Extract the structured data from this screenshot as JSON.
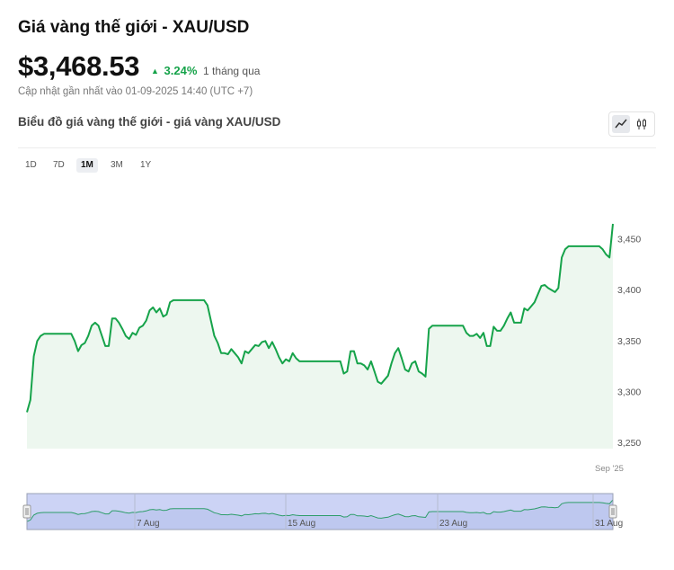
{
  "header": {
    "title": "Giá vàng thế giới - XAU/USD",
    "price": "$3,468.53",
    "change_pct": "3.24%",
    "change_period": "1 tháng qua",
    "updated": "Cập nhật gần nhất vào 01-09-2025 14:40 (UTC +7)"
  },
  "chart_title": "Biểu đồ giá vàng thế giới - giá vàng XAU/USD",
  "icons": {
    "line_mode": "line-chart-icon",
    "candle_mode": "candlestick-icon",
    "up": "triangle-up-icon"
  },
  "ranges": [
    {
      "label": "1D",
      "active": false
    },
    {
      "label": "7D",
      "active": false
    },
    {
      "label": "1M",
      "active": true
    },
    {
      "label": "3M",
      "active": false
    },
    {
      "label": "1Y",
      "active": false
    }
  ],
  "colors": {
    "line": "#16a34a",
    "fill": "#edf7ef",
    "navigator_mask": "#ccd3f5",
    "up": "#16a34a"
  },
  "chart_data": {
    "type": "area",
    "title": "",
    "xlabel": "",
    "ylabel": "",
    "ylim": [
      3245,
      3470
    ],
    "y_ticks": [
      "3,250",
      "3,300",
      "3,350",
      "3,400",
      "3,450"
    ],
    "x_tick_labels": [
      "Sep '25"
    ],
    "navigator_labels": [
      "7 Aug",
      "15 Aug",
      "23 Aug",
      "31 Aug"
    ],
    "series": [
      {
        "values": [
          3280,
          3292,
          3335,
          3350,
          3355,
          3357,
          3357,
          3357,
          3357,
          3357,
          3357,
          3357,
          3357,
          3357,
          3350,
          3340,
          3346,
          3348,
          3355,
          3365,
          3368,
          3365,
          3355,
          3345,
          3345,
          3372,
          3372,
          3368,
          3362,
          3355,
          3352,
          3358,
          3356,
          3363,
          3365,
          3370,
          3380,
          3383,
          3378,
          3382,
          3374,
          3376,
          3388,
          3390,
          3390,
          3390,
          3390,
          3390,
          3390,
          3390,
          3390,
          3390,
          3390,
          3385,
          3370,
          3355,
          3348,
          3338,
          3338,
          3337,
          3342,
          3338,
          3334,
          3328,
          3340,
          3338,
          3342,
          3346,
          3345,
          3349,
          3350,
          3343,
          3349,
          3342,
          3334,
          3328,
          3332,
          3330,
          3338,
          3333,
          3330,
          3330,
          3330,
          3330,
          3330,
          3330,
          3330,
          3330,
          3330,
          3330,
          3330,
          3330,
          3330,
          3318,
          3320,
          3340,
          3340,
          3328,
          3328,
          3326,
          3322,
          3330,
          3320,
          3310,
          3308,
          3312,
          3316,
          3328,
          3338,
          3343,
          3333,
          3322,
          3320,
          3328,
          3330,
          3320,
          3318,
          3315,
          3362,
          3365,
          3365,
          3365,
          3365,
          3365,
          3365,
          3365,
          3365,
          3365,
          3365,
          3358,
          3355,
          3355,
          3357,
          3353,
          3358,
          3345,
          3345,
          3364,
          3360,
          3360,
          3365,
          3372,
          3378,
          3368,
          3368,
          3368,
          3382,
          3380,
          3384,
          3388,
          3396,
          3404,
          3405,
          3402,
          3400,
          3398,
          3402,
          3432,
          3440,
          3443,
          3443,
          3443,
          3443,
          3443,
          3443,
          3443,
          3443,
          3443,
          3443,
          3440,
          3435,
          3432,
          3465
        ]
      }
    ]
  }
}
